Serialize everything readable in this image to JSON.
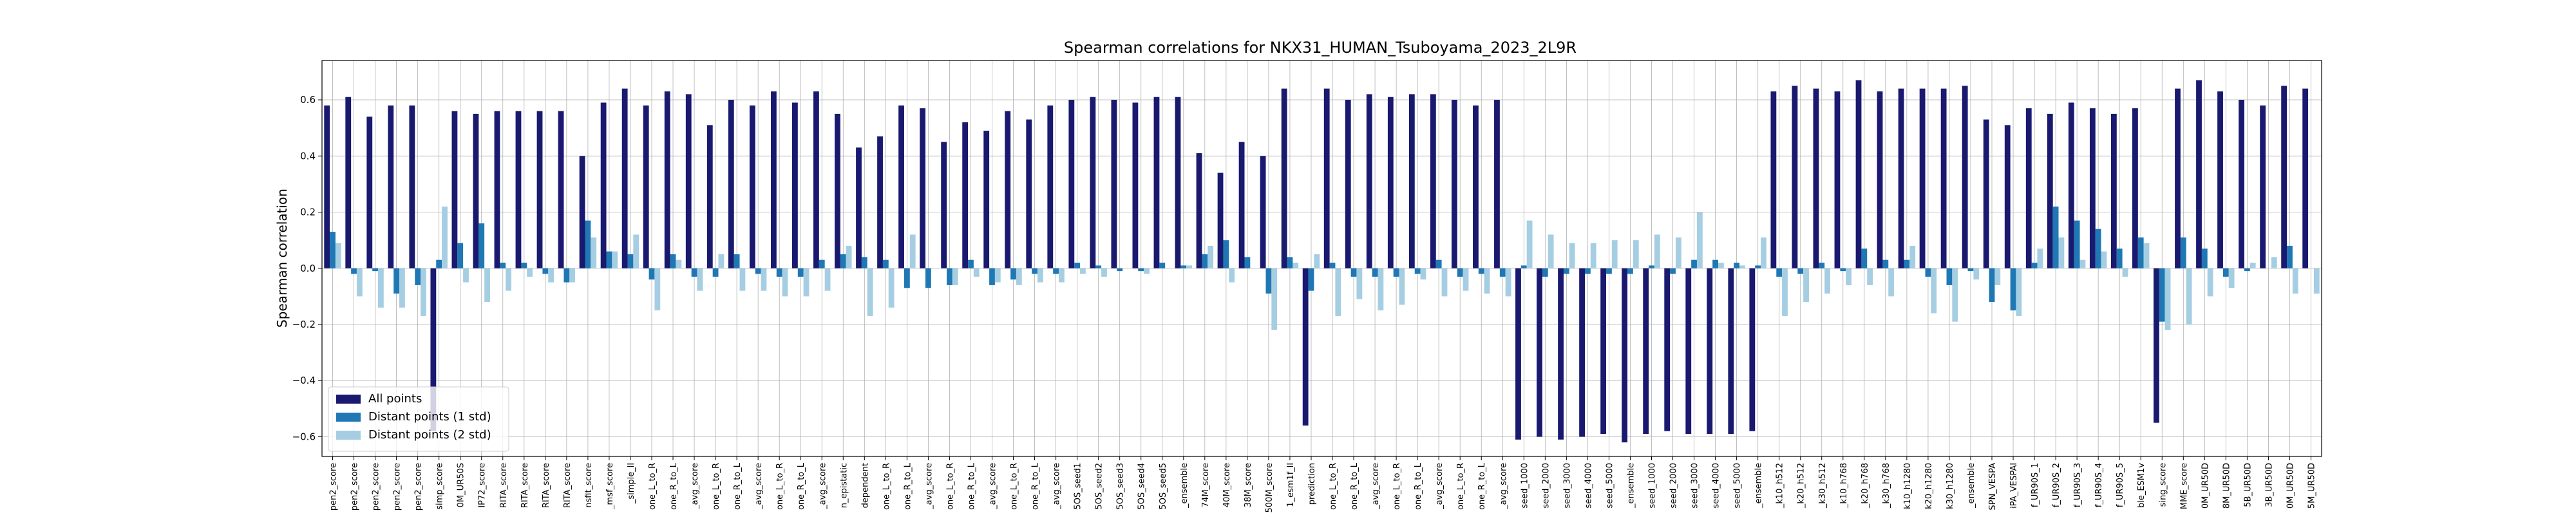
{
  "chart_data": {
    "type": "bar",
    "title": "Spearman correlations for NKX31_HUMAN_Tsuboyama_2023_2L9R",
    "y_label": "Spearman correlation",
    "categories": [
      "pen2_score",
      "pen2_score",
      "pen2_score",
      "pen2_score",
      "pen2_score",
      "simp_score",
      "0M_UR50S",
      "IP72_score",
      "RITA_score",
      "RITA_score",
      "RITA_score",
      "RITA_score",
      "nsfit_score",
      "_msf_score",
      "_simple_ll",
      "one_L_to_R",
      "one_R_to_L",
      "_avg_score",
      "one_L_to_R",
      "one_R_to_L",
      "_avg_score",
      "one_L_to_R",
      "one_R_to_L",
      "_avg_score",
      "n_epistatic",
      "dependent",
      "one_L_to_R",
      "one_R_to_L",
      "_avg_score",
      "one_L_to_R",
      "one_R_to_L",
      "_avg_score",
      "one_L_to_R",
      "one_R_to_L",
      "_avg_score",
      "5OS_seed1",
      "5OS_seed2",
      "5OS_seed3",
      "5OS_seed4",
      "5OS_seed5",
      "_ensemble",
      "74M_score",
      "40M_score",
      "38M_score",
      "500M_score",
      "1_esm1f_ll",
      "prediction",
      "one_L_to_R",
      "one_R_to_L",
      "_avg_score",
      "one_L_to_R",
      "one_R_to_L",
      "_avg_score",
      "one_L_to_R",
      "one_R_to_L",
      "_avg_score",
      "seed_1000",
      "seed_2000",
      "seed_3000",
      "seed_4000",
      "seed_5000",
      "_ensemble",
      "seed_1000",
      "seed_2000",
      "seed_3000",
      "seed_4000",
      "seed_5000",
      "_ensemble",
      "_k10_h512",
      "_k20_h512",
      "_k30_h512",
      "_k10_h768",
      "_k20_h768",
      "_k30_h768",
      "k10_h1280",
      "k20_h1280",
      "k30_h1280",
      "_ensemble",
      "SPN_VESPA",
      "iPA_VESPAl",
      "f_UR90S_1",
      "f_UR90S_2",
      "f_UR90S_3",
      "f_UR90S_4",
      "f_UR90S_5",
      "ble_ESM1v",
      "sing_score",
      "MME_score",
      "0M_UR50D",
      "8M_UR50D",
      "5B_UR50D",
      "3B_UR50D",
      "0M_UR50D",
      "5M_UR50D"
    ],
    "series": [
      {
        "name": "All points",
        "color": "#191970",
        "values": [
          0.58,
          0.61,
          0.54,
          0.58,
          0.58,
          -0.58,
          0.56,
          0.55,
          0.56,
          0.56,
          0.56,
          0.56,
          0.4,
          0.59,
          0.64,
          0.58,
          0.63,
          0.62,
          0.51,
          0.6,
          0.58,
          0.63,
          0.59,
          0.63,
          0.55,
          0.43,
          0.47,
          0.58,
          0.57,
          0.45,
          0.52,
          0.49,
          0.56,
          0.53,
          0.58,
          0.6,
          0.61,
          0.6,
          0.59,
          0.61,
          0.61,
          0.41,
          0.34,
          0.45,
          0.4,
          0.64,
          -0.56,
          0.64,
          0.6,
          0.62,
          0.61,
          0.62,
          0.62,
          0.6,
          0.58,
          0.6,
          -0.61,
          -0.6,
          -0.61,
          -0.6,
          -0.59,
          -0.62,
          -0.59,
          -0.58,
          -0.59,
          -0.59,
          -0.59,
          -0.58,
          0.63,
          0.65,
          0.64,
          0.63,
          0.67,
          0.63,
          0.64,
          0.64,
          0.64,
          0.65,
          0.53,
          0.51,
          0.57,
          0.55,
          0.59,
          0.57,
          0.55,
          0.57,
          -0.55,
          0.64,
          0.67,
          0.63,
          0.6,
          0.58,
          0.65,
          0.64
        ]
      },
      {
        "name": "Distant points (1 std)",
        "color": "#1f78b4",
        "values": [
          0.13,
          -0.02,
          -0.01,
          -0.09,
          -0.06,
          0.03,
          0.09,
          0.16,
          0.02,
          0.02,
          -0.02,
          -0.05,
          0.17,
          0.06,
          0.05,
          -0.04,
          0.05,
          -0.03,
          -0.03,
          0.05,
          -0.02,
          -0.03,
          -0.03,
          0.03,
          0.05,
          0.04,
          0.03,
          -0.07,
          -0.07,
          -0.06,
          0.03,
          -0.06,
          -0.04,
          -0.02,
          -0.02,
          0.02,
          0.01,
          -0.01,
          -0.01,
          0.02,
          0.01,
          0.05,
          0.1,
          0.04,
          -0.09,
          0.04,
          -0.08,
          0.02,
          -0.03,
          -0.03,
          -0.03,
          -0.02,
          0.03,
          -0.03,
          -0.02,
          -0.03,
          0.01,
          -0.03,
          -0.02,
          -0.02,
          -0.02,
          -0.02,
          0.01,
          -0.02,
          0.03,
          0.03,
          0.02,
          0.01,
          -0.03,
          -0.02,
          0.02,
          -0.01,
          0.07,
          0.03,
          0.03,
          -0.03,
          -0.06,
          -0.01,
          -0.12,
          -0.15,
          0.02,
          0.22,
          0.17,
          0.14,
          0.07,
          0.11,
          -0.19,
          0.11,
          0.07,
          -0.03,
          -0.01,
          0.0,
          0.08,
          0.0
        ]
      },
      {
        "name": "Distant points (2 std)",
        "color": "#a6cee3",
        "values": [
          0.09,
          -0.1,
          -0.14,
          -0.14,
          -0.17,
          0.22,
          -0.05,
          -0.12,
          -0.08,
          -0.03,
          -0.05,
          -0.05,
          0.11,
          0.06,
          0.12,
          -0.15,
          0.03,
          -0.08,
          0.05,
          -0.08,
          -0.08,
          -0.1,
          -0.1,
          -0.08,
          0.08,
          -0.17,
          -0.14,
          0.12,
          0.0,
          -0.06,
          -0.03,
          -0.05,
          -0.06,
          -0.05,
          -0.05,
          -0.02,
          -0.03,
          0.0,
          -0.02,
          0.0,
          0.01,
          0.08,
          -0.05,
          0.0,
          -0.22,
          0.02,
          0.05,
          -0.17,
          -0.11,
          -0.15,
          -0.13,
          -0.04,
          -0.1,
          -0.08,
          -0.09,
          -0.1,
          0.17,
          0.12,
          0.09,
          0.09,
          0.1,
          0.1,
          0.12,
          0.11,
          0.2,
          0.02,
          0.01,
          0.11,
          -0.17,
          -0.12,
          -0.09,
          -0.06,
          -0.06,
          -0.1,
          0.08,
          -0.16,
          -0.19,
          -0.04,
          -0.06,
          -0.17,
          0.07,
          0.11,
          0.03,
          0.06,
          -0.03,
          0.09,
          -0.22,
          -0.2,
          -0.1,
          -0.07,
          0.02,
          0.04,
          -0.09,
          -0.09
        ]
      }
    ],
    "ylim": [
      -0.67,
      0.74
    ],
    "yticks": [
      {
        "value": -0.6,
        "label": "−0.6"
      },
      {
        "value": -0.4,
        "label": "−0.4"
      },
      {
        "value": -0.2,
        "label": "−0.2"
      },
      {
        "value": 0,
        "label": "0.0"
      },
      0.2,
      0.4,
      0.6
    ],
    "grid": true,
    "legend": "lower left"
  }
}
